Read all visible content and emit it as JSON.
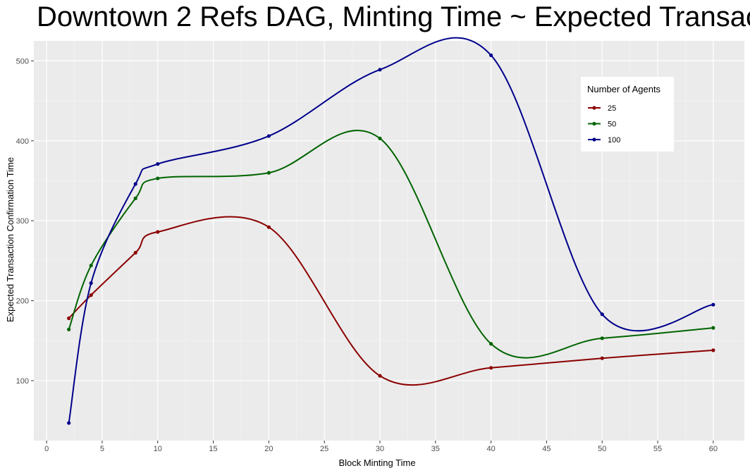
{
  "chart_data": {
    "type": "line",
    "title": "Downtown 2 Refs DAG,  Minting Time ~ Expected Transac",
    "x_label": "Block Minting Time",
    "y_label": "Expected Transaction Confirmation Time",
    "legend_title": "Number of Agents",
    "x": [
      2,
      4,
      8,
      10,
      20,
      30,
      40,
      50,
      60
    ],
    "series": [
      {
        "name": "25",
        "color": "#8b0000",
        "values": [
          178,
          207,
          260,
          286,
          292,
          106,
          116,
          128,
          138
        ]
      },
      {
        "name": "50",
        "color": "#006400",
        "values": [
          164,
          244,
          328,
          353,
          360,
          403,
          146,
          153,
          166
        ]
      },
      {
        "name": "100",
        "color": "#00008b",
        "values": [
          47,
          222,
          346,
          371,
          406,
          489,
          507,
          183,
          195
        ]
      }
    ],
    "xlim": [
      -1.15,
      62.8
    ],
    "ylim": [
      25,
      525
    ],
    "xticks": [
      0,
      5,
      10,
      15,
      20,
      25,
      30,
      35,
      40,
      45,
      50,
      55,
      60
    ],
    "yticks": [
      100,
      200,
      300,
      400,
      500
    ],
    "grid": true,
    "legend": "top-right"
  }
}
